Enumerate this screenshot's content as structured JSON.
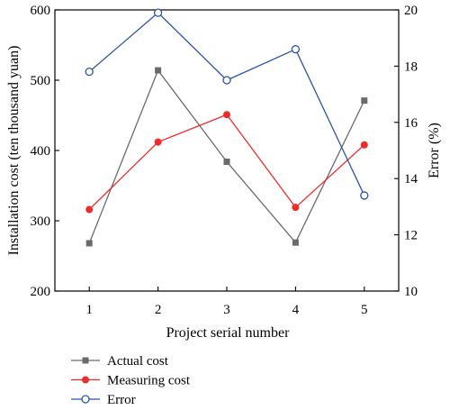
{
  "chart_data": {
    "type": "line",
    "xlabel": "Project serial number",
    "ylabel_left": "Installation cost (ten thousand yuan)",
    "ylabel_right": "Error (%)",
    "categories": [
      "1",
      "2",
      "3",
      "4",
      "5"
    ],
    "x": [
      1,
      2,
      3,
      4,
      5
    ],
    "ylim_left": [
      200,
      600
    ],
    "yticks_left": [
      200,
      300,
      400,
      500,
      600
    ],
    "ylim_right": [
      10,
      20
    ],
    "yticks_right": [
      10,
      12,
      14,
      16,
      18,
      20
    ],
    "grid": false,
    "legend_position": "bottom-left",
    "series": [
      {
        "name": "Actual cost",
        "axis": "left",
        "color": "#6b6b6b",
        "marker": "square",
        "values": [
          268,
          514,
          384,
          269,
          471
        ]
      },
      {
        "name": "Measuring cost",
        "axis": "left",
        "color": "#ee2b2b",
        "marker": "circle",
        "values": [
          316,
          412,
          451,
          319,
          408
        ]
      },
      {
        "name": "Error",
        "axis": "right",
        "color": "#2a54a8",
        "marker": "open-circle",
        "values": [
          17.8,
          19.9,
          17.5,
          18.6,
          13.4
        ]
      }
    ]
  }
}
